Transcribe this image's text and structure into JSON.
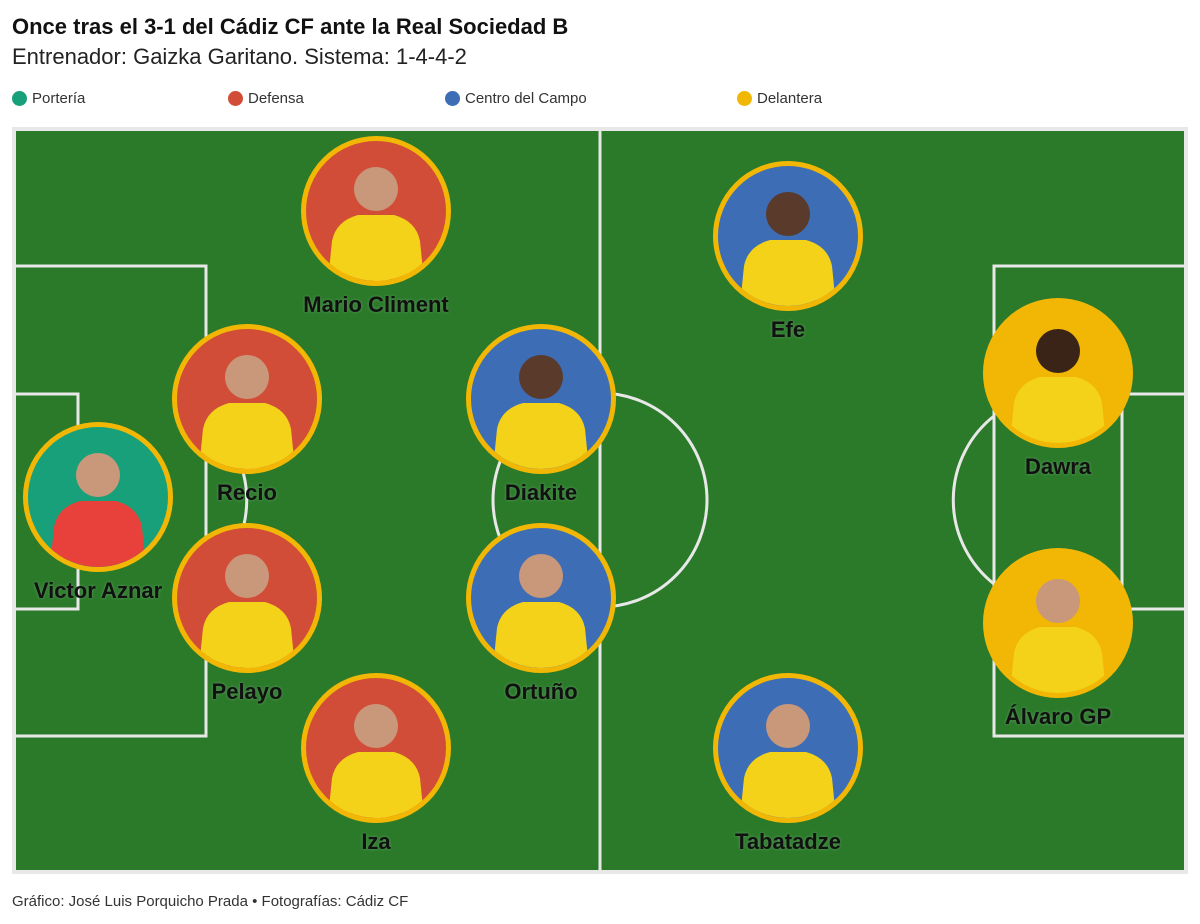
{
  "header": {
    "title": "Once tras el 3-1 del Cádiz CF ante la Real Sociedad B",
    "subtitle": "Entrenador: Gaizka Garitano. Sistema: 1-4-4-2"
  },
  "legend": [
    {
      "label": "Portería",
      "color": "#17a07a"
    },
    {
      "label": "Defensa",
      "color": "#d24d37"
    },
    {
      "label": "Centro del Campo",
      "color": "#3d6eb5"
    },
    {
      "label": "Delantera",
      "color": "#f2b705"
    }
  ],
  "colors": {
    "pitch": "#2a7a2a",
    "lines": "#e8e8e8",
    "ring": "#f2b705",
    "shirt": "#f5d21a",
    "keeper_shirt": "#e8403a"
  },
  "players": [
    {
      "name": "Victor Aznar",
      "role": "Portería"
    },
    {
      "name": "Mario Climent",
      "role": "Defensa"
    },
    {
      "name": "Recio",
      "role": "Defensa"
    },
    {
      "name": "Pelayo",
      "role": "Defensa"
    },
    {
      "name": "Iza",
      "role": "Defensa"
    },
    {
      "name": "Diakite",
      "role": "Centro del Campo"
    },
    {
      "name": "Ortuño",
      "role": "Centro del Campo"
    },
    {
      "name": "Efe",
      "role": "Centro del Campo"
    },
    {
      "name": "Tabatadze",
      "role": "Centro del Campo"
    },
    {
      "name": "Dawra",
      "role": "Delantera"
    },
    {
      "name": "Álvaro GP",
      "role": "Delantera"
    }
  ],
  "footer": {
    "credit": "Gráfico: José Luis Porquicho Prada • Fotografías: Cádiz CF"
  }
}
